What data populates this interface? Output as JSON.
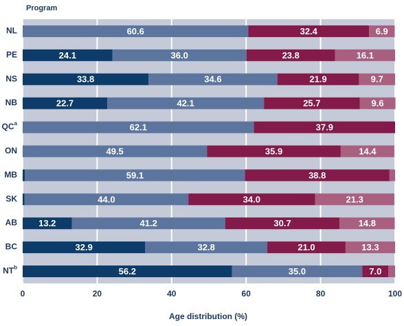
{
  "chart_data": {
    "type": "stacked-bar-horizontal",
    "y_axis_title": "Program",
    "x_axis_title": "Age distribution (%)",
    "categories": [
      "NL",
      "PE",
      "NS",
      "NB",
      "QC",
      "ON",
      "MB",
      "SK",
      "AB",
      "BC",
      "NT"
    ],
    "category_superscripts": [
      null,
      null,
      null,
      null,
      "a",
      null,
      null,
      null,
      null,
      null,
      "b"
    ],
    "series": [
      {
        "color": "#0d3b6a",
        "values": [
          null,
          24.1,
          33.8,
          22.7,
          null,
          null,
          0.6,
          0.5,
          13.2,
          32.9,
          56.2
        ],
        "value_labels": [
          null,
          "24.1",
          "33.8",
          "22.7",
          null,
          null,
          null,
          null,
          "13.2",
          "32.9",
          "56.2"
        ]
      },
      {
        "color": "#5b759f",
        "values": [
          60.6,
          36.0,
          34.6,
          42.1,
          62.1,
          49.5,
          59.1,
          44.0,
          41.2,
          32.8,
          35.0
        ],
        "value_labels": [
          "60.6",
          "36.0",
          "34.6",
          "42.1",
          "62.1",
          "49.5",
          "59.1",
          "44.0",
          "41.2",
          "32.8",
          "35.0"
        ]
      },
      {
        "color": "#841a4a",
        "values": [
          32.4,
          23.8,
          21.9,
          25.7,
          37.9,
          35.9,
          38.8,
          34.0,
          30.7,
          21.0,
          7.0
        ],
        "value_labels": [
          "32.4",
          "23.8",
          "21.9",
          "25.7",
          "37.9",
          "35.9",
          "38.8",
          "34.0",
          "30.7",
          "21.0",
          "7.0"
        ]
      },
      {
        "color": "#a8607e",
        "values": [
          6.9,
          16.1,
          9.7,
          9.6,
          null,
          14.4,
          1.5,
          21.3,
          14.8,
          13.3,
          1.8
        ],
        "value_labels": [
          "6.9",
          "16.1",
          "9.7",
          "9.6",
          null,
          "14.4",
          null,
          "21.3",
          "14.8",
          "13.3",
          null
        ]
      }
    ],
    "xlim": [
      0,
      100
    ],
    "xticks": [
      0,
      20,
      40,
      60,
      80,
      100
    ],
    "grid": true,
    "plot_background": "#c5cad9"
  }
}
